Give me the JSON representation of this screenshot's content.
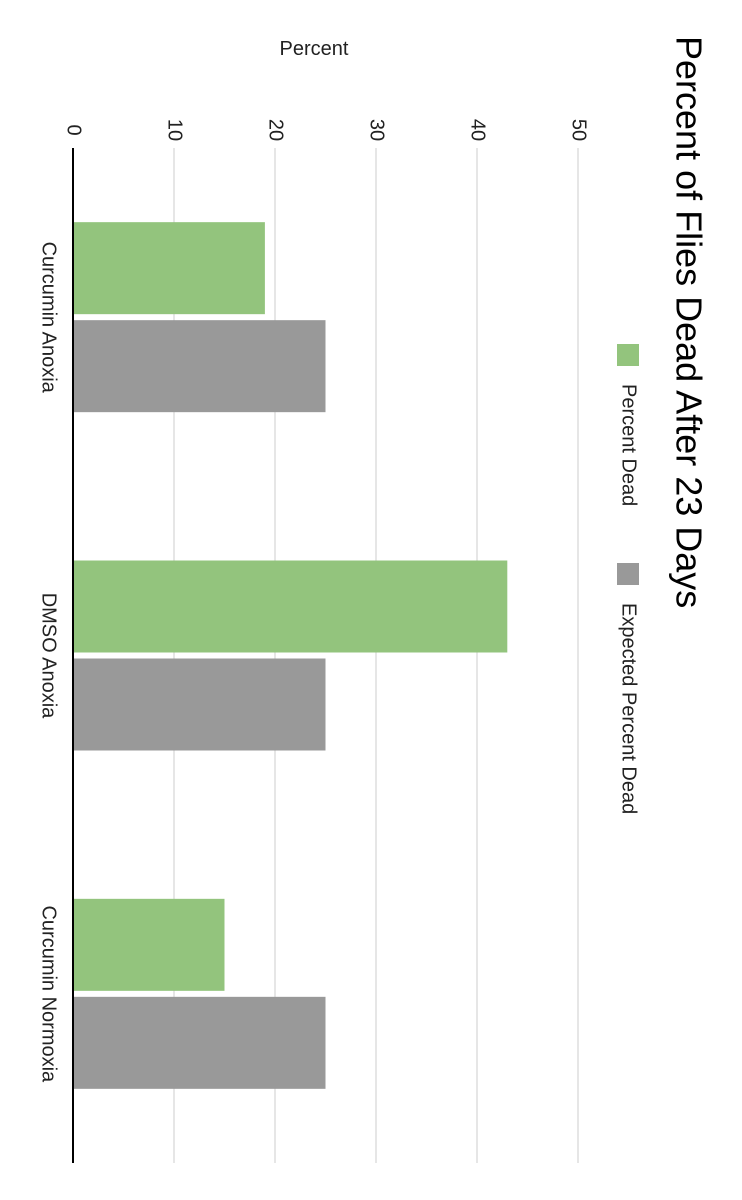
{
  "chart_data": {
    "type": "bar",
    "orientation": "rotated-90-clockwise",
    "title": "Percent of Flies Dead After 23 Days",
    "xlabel": "",
    "ylabel": "Percent",
    "categories": [
      "Curcumin Anoxia",
      "DMSO Anoxia",
      "Curcumin Normoxia"
    ],
    "series": [
      {
        "name": "Percent Dead",
        "color": "#93c47d",
        "values": [
          19,
          43,
          15
        ]
      },
      {
        "name": "Expected Percent Dead",
        "color": "#999999",
        "values": [
          25,
          25,
          25
        ]
      }
    ],
    "ylim": [
      0,
      50
    ],
    "yticks": [
      "0",
      "10",
      "20",
      "30",
      "40",
      "50"
    ],
    "grid": true,
    "legend_position": "top"
  }
}
